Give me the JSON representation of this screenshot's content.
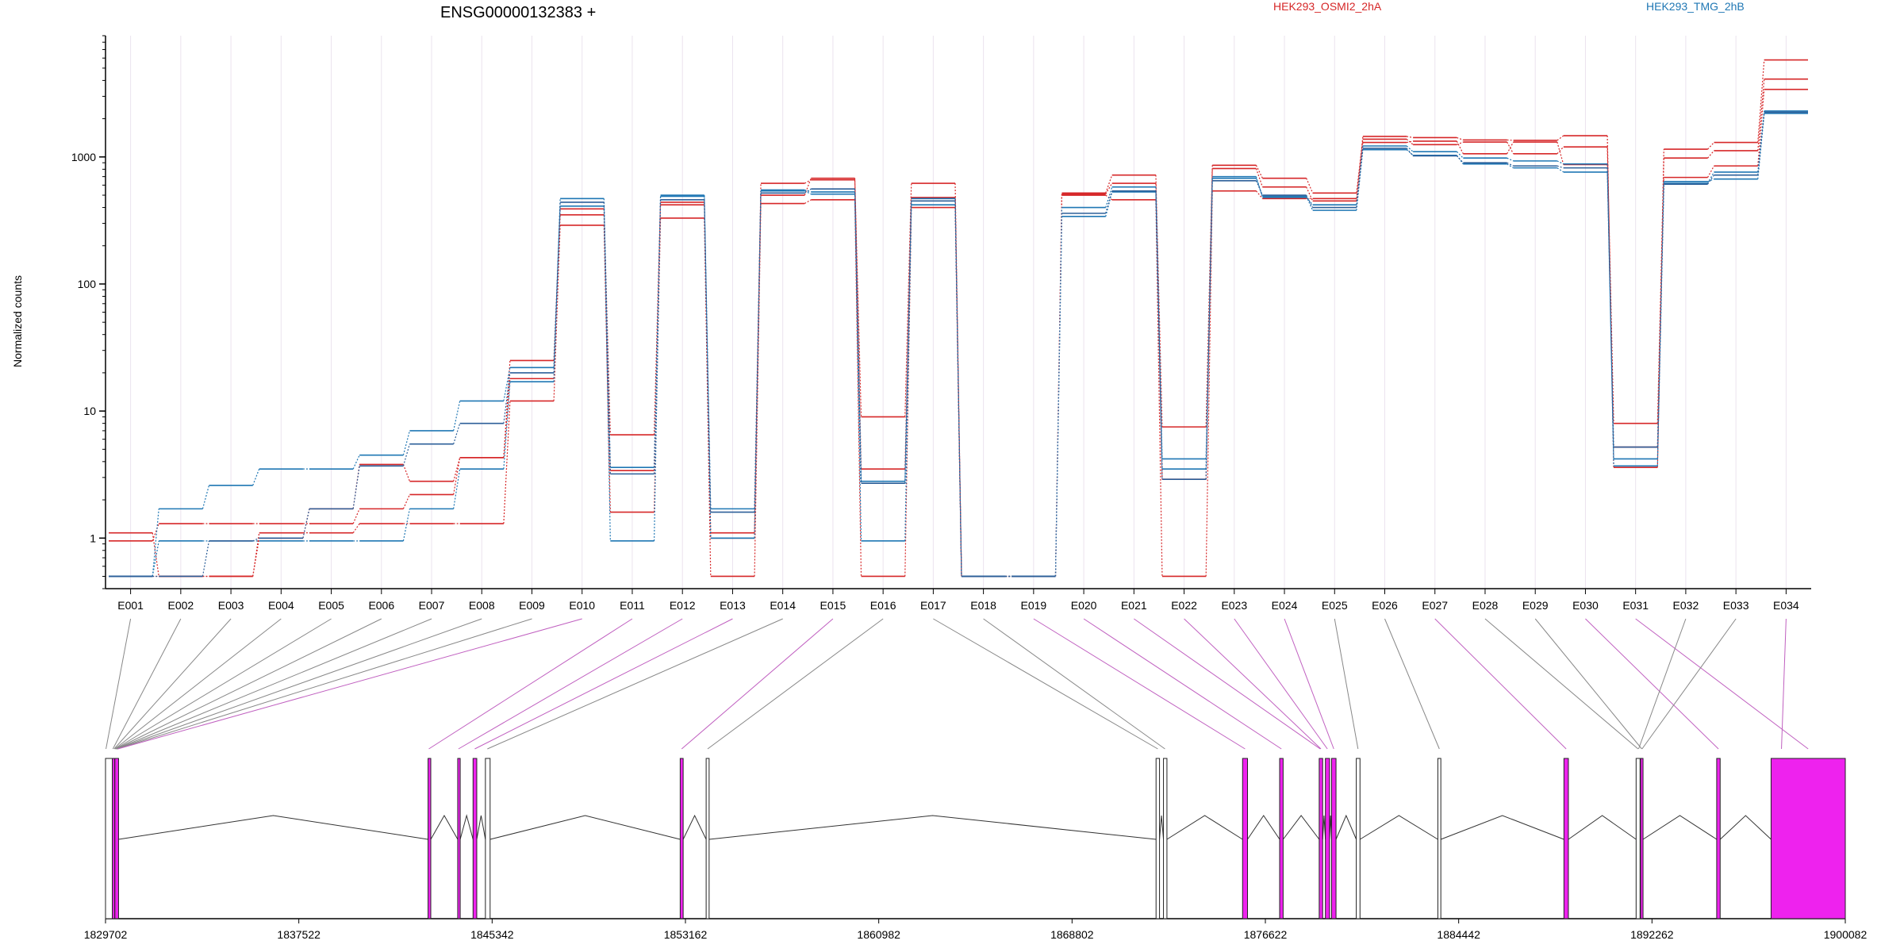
{
  "chart_data": {
    "type": "line",
    "title": "ENSG00000132383 +",
    "ylabel": "Normalized counts",
    "xlabel": "",
    "yscale": "log",
    "ylim": [
      0.4,
      9000
    ],
    "grid": true,
    "legend_placement": "top",
    "y_ticks": [
      {
        "value": 1,
        "label": "1"
      },
      {
        "value": 10,
        "label": "10"
      },
      {
        "value": 100,
        "label": "100"
      },
      {
        "value": 1000,
        "label": "1000"
      }
    ],
    "categories": [
      "E001",
      "E002",
      "E003",
      "E004",
      "E005",
      "E006",
      "E007",
      "E008",
      "E009",
      "E010",
      "E011",
      "E012",
      "E013",
      "E014",
      "E015",
      "E016",
      "E017",
      "E018",
      "E019",
      "E020",
      "E021",
      "E022",
      "E023",
      "E024",
      "E025",
      "E026",
      "E027",
      "E028",
      "E029",
      "E030",
      "E031",
      "E032",
      "E033",
      "E034"
    ],
    "series": [
      {
        "group": "HEK293_OSMI2_2hA",
        "color": "#d62728",
        "values": [
          1.1,
          0.5,
          0.5,
          1.1,
          1.1,
          1.3,
          1.3,
          1.3,
          12,
          290,
          1.6,
          330,
          0.5,
          430,
          460,
          0.5,
          400,
          0.5,
          0.5,
          500,
          460,
          0.5,
          540,
          470,
          470,
          1450,
          1420,
          1360,
          1350,
          1470,
          3.6,
          1150,
          1300,
          5800
        ]
      },
      {
        "group": "HEK293_OSMI2_2hA",
        "color": "#d62728",
        "values": [
          0.95,
          1.3,
          1.3,
          1.3,
          1.3,
          1.7,
          2.2,
          4.3,
          18,
          350,
          3.4,
          420,
          1.1,
          500,
          680,
          3.5,
          480,
          0.5,
          0.5,
          520,
          720,
          7.5,
          860,
          680,
          520,
          1380,
          1250,
          1310,
          1060,
          1200,
          8,
          980,
          1120,
          4100
        ]
      },
      {
        "group": "HEK293_OSMI2_2hA",
        "color": "#d62728",
        "values": [
          0.5,
          0.5,
          0.5,
          1.0,
          1.7,
          3.8,
          2.8,
          4.3,
          25,
          390,
          6.5,
          440,
          1.0,
          620,
          660,
          9,
          620,
          0.5,
          0.5,
          510,
          620,
          2.9,
          810,
          580,
          450,
          1300,
          1330,
          1060,
          1310,
          870,
          5.2,
          690,
          850,
          3400
        ]
      },
      {
        "group": "HEK293_TMG_2hB",
        "color": "#1f77b4",
        "values": [
          0.5,
          0.95,
          0.95,
          0.95,
          0.95,
          0.95,
          1.7,
          3.5,
          17,
          470,
          0.95,
          500,
          1.0,
          550,
          530,
          0.95,
          420,
          0.5,
          0.5,
          340,
          530,
          4.2,
          700,
          480,
          420,
          1220,
          1100,
          980,
          930,
          880,
          3.7,
          640,
          670,
          2200
        ]
      },
      {
        "group": "HEK293_TMG_2hB",
        "color": "#1f77b4",
        "values": [
          0.5,
          1.7,
          2.6,
          3.5,
          3.5,
          4.5,
          7,
          12,
          22,
          410,
          3.6,
          490,
          1.7,
          540,
          510,
          2.8,
          470,
          0.5,
          0.5,
          400,
          580,
          3.5,
          680,
          490,
          380,
          1140,
          1030,
          880,
          820,
          760,
          4.2,
          620,
          760,
          2300
        ]
      },
      {
        "group": "HEK293_TMG_2hB",
        "color": "#2c5f99",
        "values": [
          0.5,
          0.5,
          0.95,
          1.0,
          1.7,
          3.7,
          5.5,
          8,
          20,
          440,
          3.2,
          460,
          1.6,
          520,
          560,
          2.7,
          450,
          0.5,
          0.5,
          360,
          540,
          2.9,
          650,
          500,
          400,
          1170,
          1020,
          900,
          850,
          820,
          5.2,
          610,
          720,
          2250
        ]
      }
    ],
    "legend": [
      {
        "label": "HEK293_OSMI2_2hA",
        "color": "#d62728"
      },
      {
        "label": "HEK293_TMG_2hB",
        "color": "#1f77b4"
      }
    ],
    "gene_model": {
      "coord_ticks": [
        1829702,
        1837522,
        1845342,
        1853162,
        1860982,
        1868802,
        1876622,
        1884442,
        1892262,
        1900082
      ],
      "range": [
        1829702,
        1900082
      ],
      "exon_fill_colors": {
        "differential": "#ee22ee",
        "not_differential": "#ffffff"
      },
      "exons": [
        {
          "start": 1829702,
          "end": 1829980,
          "differential": false,
          "bin": 1
        },
        {
          "start": 1829980,
          "end": 1830060,
          "differential": true,
          "bin": 2
        },
        {
          "start": 1830080,
          "end": 1830230,
          "differential": true,
          "bin": 8
        },
        {
          "start": 1842750,
          "end": 1842860,
          "differential": true,
          "bin": 10
        },
        {
          "start": 1843950,
          "end": 1844050,
          "differential": true,
          "bin": 11
        },
        {
          "start": 1844570,
          "end": 1844720,
          "differential": true,
          "bin": 12
        },
        {
          "start": 1845070,
          "end": 1845260,
          "differential": false,
          "bin": 13
        },
        {
          "start": 1852950,
          "end": 1853070,
          "differential": true,
          "bin": 15
        },
        {
          "start": 1854000,
          "end": 1854120,
          "differential": false,
          "bin": 17
        },
        {
          "start": 1872200,
          "end": 1872340,
          "differential": false,
          "bin": 19
        },
        {
          "start": 1872500,
          "end": 1872640,
          "differential": false,
          "bin": 20
        },
        {
          "start": 1875700,
          "end": 1875900,
          "differential": true,
          "bin": 22
        },
        {
          "start": 1877200,
          "end": 1877340,
          "differential": true,
          "bin": 23
        },
        {
          "start": 1878800,
          "end": 1878940,
          "differential": true,
          "bin": 24
        },
        {
          "start": 1879050,
          "end": 1879220,
          "differential": true,
          "bin": 25
        },
        {
          "start": 1879300,
          "end": 1879480,
          "differential": true,
          "bin": 26
        },
        {
          "start": 1880300,
          "end": 1880450,
          "differential": false,
          "bin": 27
        },
        {
          "start": 1883600,
          "end": 1883720,
          "differential": false,
          "bin": 28
        },
        {
          "start": 1888700,
          "end": 1888880,
          "differential": true,
          "bin": 29
        },
        {
          "start": 1891620,
          "end": 1891780,
          "differential": false,
          "bin": 31
        },
        {
          "start": 1891800,
          "end": 1891900,
          "differential": true,
          "bin": 32
        },
        {
          "start": 1894880,
          "end": 1895020,
          "differential": true,
          "bin": 33
        },
        {
          "start": 1897080,
          "end": 1900082,
          "differential": true,
          "bin": 34
        }
      ],
      "bin_connectors": [
        {
          "bin": "E001",
          "start": 1829720,
          "end": 1829720
        },
        {
          "bin": "E002",
          "start": 1830000,
          "end": 1830000
        },
        {
          "bin": "E003",
          "start": 1830050,
          "end": 1830050
        },
        {
          "bin": "E004",
          "start": 1830080,
          "end": 1830080
        },
        {
          "bin": "E005",
          "start": 1830100,
          "end": 1830100
        },
        {
          "bin": "E006",
          "start": 1830120,
          "end": 1830120
        },
        {
          "bin": "E007",
          "start": 1830140,
          "end": 1830140
        },
        {
          "bin": "E008",
          "start": 1830160,
          "end": 1830160
        },
        {
          "bin": "E009",
          "start": 1830180,
          "end": 1830180
        },
        {
          "bin": "E010",
          "start": 1830200,
          "end": 1830200
        },
        {
          "bin": "E011",
          "start": 1842780,
          "end": 1842780
        },
        {
          "bin": "E012",
          "start": 1843980,
          "end": 1843980
        },
        {
          "bin": "E013",
          "start": 1844640,
          "end": 1844640
        },
        {
          "bin": "E014",
          "start": 1845150,
          "end": 1845150
        },
        {
          "bin": "E015",
          "start": 1853010,
          "end": 1853010
        },
        {
          "bin": "E016",
          "start": 1854060,
          "end": 1854060
        },
        {
          "bin": "E017",
          "start": 1872270,
          "end": 1872270
        },
        {
          "bin": "E018",
          "start": 1872560,
          "end": 1872560
        },
        {
          "bin": "E019",
          "start": 1875800,
          "end": 1875800
        },
        {
          "bin": "E020",
          "start": 1877270,
          "end": 1877270
        },
        {
          "bin": "E021",
          "start": 1878840,
          "end": 1878840
        },
        {
          "bin": "E022",
          "start": 1878870,
          "end": 1878870
        },
        {
          "bin": "E023",
          "start": 1879130,
          "end": 1879130
        },
        {
          "bin": "E024",
          "start": 1879390,
          "end": 1879390
        },
        {
          "bin": "E025",
          "start": 1880370,
          "end": 1880370
        },
        {
          "bin": "E026",
          "start": 1883660,
          "end": 1883660
        },
        {
          "bin": "E027",
          "start": 1888790,
          "end": 1888790
        },
        {
          "bin": "E028",
          "start": 1891700,
          "end": 1891700
        },
        {
          "bin": "E029",
          "start": 1891850,
          "end": 1891850
        },
        {
          "bin": "E030",
          "start": 1894950,
          "end": 1894950
        },
        {
          "bin": "E031",
          "start": 1898580,
          "end": 1898580
        },
        {
          "bin": "E032",
          "start": 1891720,
          "end": 1891720
        },
        {
          "bin": "E033",
          "start": 1891860,
          "end": 1891860
        },
        {
          "bin": "E034",
          "start": 1897500,
          "end": 1897500
        }
      ]
    }
  }
}
